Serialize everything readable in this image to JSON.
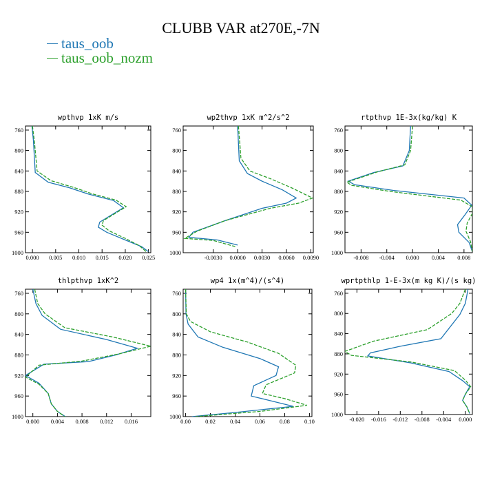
{
  "title": "CLUBB VAR at270E,-7N",
  "legend": [
    {
      "name": "taus_oob",
      "color": "#1f77b4"
    },
    {
      "name": "taus_oob_nozm",
      "color": "#2ca02c"
    }
  ],
  "chart_data": [
    {
      "type": "line",
      "title": "wpthvp  1xK m/s",
      "xlim": [
        -0.0015,
        0.0255
      ],
      "ylim": [
        1000,
        752
      ],
      "xticks": [
        0.0,
        0.005,
        0.01,
        0.015,
        0.02,
        0.025
      ],
      "xtick_labels": [
        "0.000",
        "0.005",
        "0.010",
        "0.015",
        "0.020",
        "0.025"
      ],
      "yticks": [
        760,
        800,
        840,
        880,
        920,
        960,
        1000
      ],
      "series": [
        {
          "color": "#1f77b4",
          "dash": false,
          "x": [
            -0.0001,
            0.0002,
            0.0006,
            0.0034,
            0.008,
            0.012,
            0.0175,
            0.0196,
            0.0145,
            0.0142,
            0.016,
            0.02,
            0.0235,
            0.025
          ],
          "y": [
            752,
            780,
            843,
            862,
            873,
            885,
            898,
            912,
            940,
            950,
            960,
            975,
            988,
            998
          ]
        },
        {
          "color": "#2ca02c",
          "dash": true,
          "x": [
            0.0,
            0.0004,
            0.001,
            0.004,
            0.0088,
            0.013,
            0.018,
            0.0202,
            0.0153,
            0.015,
            0.0165,
            0.02,
            0.023,
            0.0245
          ],
          "y": [
            752,
            780,
            840,
            859,
            872,
            885,
            897,
            910,
            937,
            946,
            957,
            972,
            986,
            998
          ]
        }
      ]
    },
    {
      "type": "line",
      "title": "wp2thvp  1xK m^2/s^2",
      "xlim": [
        -0.0067,
        0.0093
      ],
      "ylim": [
        1000,
        752
      ],
      "xticks": [
        -0.003,
        0.0,
        0.003,
        0.006,
        0.009
      ],
      "xtick_labels": [
        "-0.0030",
        "0.0000",
        "0.0030",
        "0.0060",
        "0.0090"
      ],
      "yticks": [
        760,
        800,
        840,
        880,
        920,
        960,
        1000
      ],
      "series": [
        {
          "color": "#1f77b4",
          "dash": false,
          "x": [
            0.0,
            0.0002,
            0.0012,
            0.003,
            0.0055,
            0.0072,
            0.006,
            0.003,
            -0.0015,
            -0.0055,
            -0.006,
            -0.0025,
            0.0
          ],
          "y": [
            752,
            820,
            845,
            860,
            877,
            893,
            903,
            913,
            937,
            960,
            970,
            975,
            985
          ]
        },
        {
          "color": "#2ca02c",
          "dash": true,
          "x": [
            0.0001,
            0.0004,
            0.0015,
            0.004,
            0.0065,
            0.0092,
            0.0075,
            0.004,
            -0.0015,
            -0.005,
            -0.0065,
            -0.003,
            -0.0003
          ],
          "y": [
            752,
            815,
            840,
            855,
            872,
            893,
            903,
            913,
            937,
            958,
            972,
            976,
            988
          ]
        }
      ]
    },
    {
      "type": "line",
      "title": "rtpthvp  1E-3x(kg/kg) K",
      "xlim": [
        -0.0105,
        0.0093
      ],
      "ylim": [
        1000,
        752
      ],
      "xticks": [
        -0.008,
        -0.004,
        0.0,
        0.004,
        0.008
      ],
      "xtick_labels": [
        "-0.008",
        "-0.004",
        "0.000",
        "0.004",
        "0.008"
      ],
      "yticks": [
        760,
        800,
        840,
        880,
        920,
        960,
        1000
      ],
      "series": [
        {
          "color": "#1f77b4",
          "dash": false,
          "x": [
            -0.0003,
            -0.0005,
            -0.0015,
            -0.006,
            -0.01,
            -0.009,
            -0.003,
            0.008,
            0.0092,
            0.0082,
            0.007,
            0.0072,
            0.0088,
            0.0093
          ],
          "y": [
            752,
            800,
            830,
            843,
            860,
            867,
            878,
            893,
            907,
            925,
            945,
            960,
            980,
            998
          ]
        },
        {
          "color": "#2ca02c",
          "dash": true,
          "x": [
            0.0,
            -0.0003,
            -0.0012,
            -0.0055,
            -0.0102,
            -0.0095,
            -0.0035,
            0.0075,
            0.0093,
            0.0093,
            0.0085,
            0.0083,
            0.009,
            0.0093
          ],
          "y": [
            752,
            800,
            828,
            842,
            862,
            868,
            880,
            897,
            910,
            923,
            942,
            958,
            978,
            998
          ]
        }
      ]
    },
    {
      "type": "line",
      "title": "thlpthvp  1xK^2",
      "xlim": [
        -0.0012,
        0.0192
      ],
      "ylim": [
        1000,
        752
      ],
      "xticks": [
        0.0,
        0.004,
        0.008,
        0.012,
        0.016
      ],
      "xtick_labels": [
        "0.000",
        "0.004",
        "0.008",
        "0.012",
        "0.016"
      ],
      "yticks": [
        760,
        800,
        840,
        880,
        920,
        960,
        1000
      ],
      "series": [
        {
          "color": "#1f77b4",
          "dash": false,
          "x": [
            0.0,
            0.0005,
            0.0015,
            0.0045,
            0.012,
            0.017,
            0.0135,
            0.009,
            0.0018,
            -0.0012,
            0.001,
            0.0025,
            0.003,
            0.004,
            0.0053
          ],
          "y": [
            752,
            780,
            803,
            830,
            850,
            867,
            880,
            893,
            898,
            920,
            935,
            955,
            975,
            990,
            1000
          ]
        },
        {
          "color": "#2ca02c",
          "dash": true,
          "x": [
            0.0003,
            0.0008,
            0.002,
            0.0052,
            0.013,
            0.0192,
            0.014,
            0.008,
            0.001,
            -0.0012,
            0.001,
            0.0025,
            0.003,
            0.004,
            0.0052
          ],
          "y": [
            752,
            780,
            800,
            827,
            845,
            863,
            878,
            892,
            900,
            923,
            937,
            955,
            975,
            990,
            1000
          ]
        }
      ]
    },
    {
      "type": "line",
      "title": "wp4  1x(m^4)/(s^4)",
      "xlim": [
        -0.002,
        0.102
      ],
      "ylim": [
        1000,
        752
      ],
      "xticks": [
        0.0,
        0.02,
        0.04,
        0.06,
        0.08,
        0.1
      ],
      "xtick_labels": [
        "0.00",
        "0.02",
        "0.04",
        "0.06",
        "0.08",
        "0.10"
      ],
      "yticks": [
        760,
        800,
        840,
        880,
        920,
        960,
        1000
      ],
      "series": [
        {
          "color": "#1f77b4",
          "dash": false,
          "x": [
            0.0,
            0.0003,
            0.002,
            0.01,
            0.03,
            0.06,
            0.075,
            0.073,
            0.055,
            0.053,
            0.07,
            0.087,
            0.04,
            0.005
          ],
          "y": [
            752,
            800,
            820,
            845,
            865,
            887,
            903,
            920,
            940,
            960,
            970,
            980,
            992,
            1000
          ]
        },
        {
          "color": "#2ca02c",
          "dash": true,
          "x": [
            0.0,
            0.0005,
            0.004,
            0.02,
            0.05,
            0.075,
            0.089,
            0.088,
            0.065,
            0.062,
            0.08,
            0.098,
            0.06,
            0.008
          ],
          "y": [
            752,
            800,
            815,
            835,
            855,
            877,
            900,
            915,
            938,
            955,
            965,
            978,
            990,
            1000
          ]
        }
      ]
    },
    {
      "type": "line",
      "title": "wprtpthlp  1-E-3x(m kg K)/(s kg)",
      "xlim": [
        -0.0222,
        0.0013
      ],
      "ylim": [
        1000,
        752
      ],
      "xticks": [
        -0.02,
        -0.016,
        -0.012,
        -0.008,
        -0.004,
        0.0
      ],
      "xtick_labels": [
        "-0.020",
        "-0.016",
        "-0.012",
        "-0.008",
        "-0.004",
        "0.000"
      ],
      "yticks": [
        760,
        800,
        840,
        880,
        920,
        960,
        1000
      ],
      "series": [
        {
          "color": "#1f77b4",
          "dash": false,
          "x": [
            0.0005,
            0.0,
            -0.001,
            -0.0045,
            -0.012,
            -0.0175,
            -0.018,
            -0.01,
            -0.003,
            -0.0005,
            0.0008,
            0.0,
            -0.0005,
            0.0003,
            0.0008
          ],
          "y": [
            752,
            780,
            802,
            850,
            865,
            878,
            884,
            898,
            915,
            933,
            945,
            960,
            972,
            985,
            998
          ]
        },
        {
          "color": "#2ca02c",
          "dash": true,
          "x": [
            0.0,
            -0.001,
            -0.0025,
            -0.007,
            -0.017,
            -0.0222,
            -0.021,
            -0.01,
            -0.002,
            0.0,
            0.001,
            0.0,
            -0.0005,
            0.0003,
            0.0008
          ],
          "y": [
            752,
            780,
            800,
            832,
            855,
            875,
            883,
            896,
            913,
            932,
            945,
            960,
            972,
            985,
            998
          ]
        }
      ]
    }
  ]
}
